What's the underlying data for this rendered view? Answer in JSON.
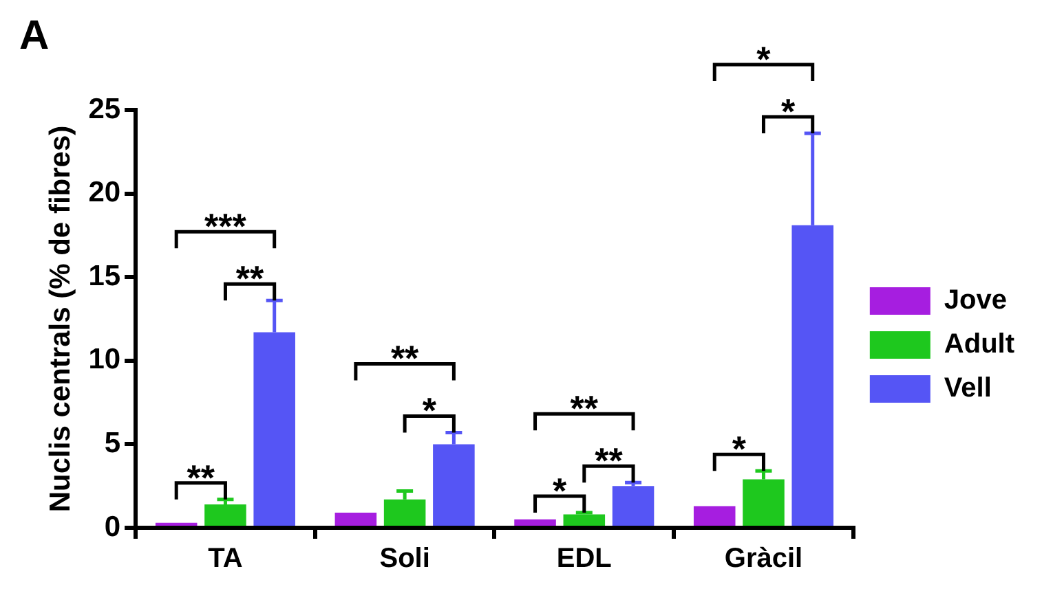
{
  "chart_data": {
    "type": "bar",
    "ylabel": "Nuclis centrals (% de fibres)",
    "categories": [
      "TA",
      "Soli",
      "EDL",
      "Gràcil"
    ],
    "series": [
      {
        "name": "Jove",
        "color": "#a61ee0",
        "values": [
          0.3,
          0.9,
          0.5,
          1.3
        ],
        "errors": [
          null,
          null,
          null,
          null
        ]
      },
      {
        "name": "Adult",
        "color": "#1ec81e",
        "values": [
          1.4,
          1.7,
          0.8,
          2.9
        ],
        "errors": [
          0.3,
          0.5,
          0.1,
          0.5
        ]
      },
      {
        "name": "Vell",
        "color": "#5555f5",
        "values": [
          11.7,
          5.0,
          2.5,
          18.1
        ],
        "errors": [
          1.9,
          0.7,
          0.2,
          5.5
        ]
      }
    ],
    "ylim": [
      0,
      25
    ],
    "yticks": [
      0,
      5,
      10,
      15,
      20,
      25
    ],
    "legend": "right",
    "annotations": [
      "A",
      "**",
      "***",
      "**",
      "**",
      "*",
      "**",
      "**",
      "*",
      "*",
      "*",
      "*"
    ]
  }
}
